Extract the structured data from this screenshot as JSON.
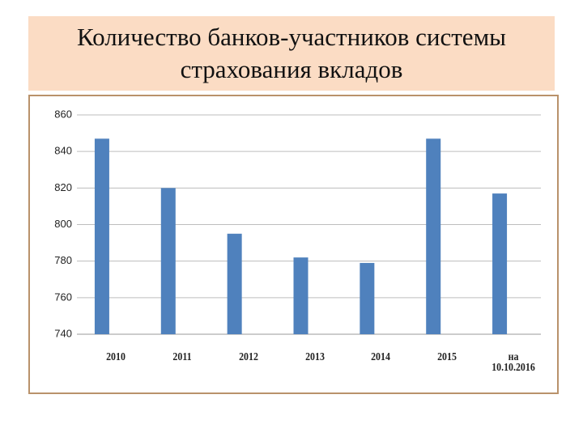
{
  "chart_data": {
    "type": "bar",
    "title": "Количество банков-участников системы страхования вкладов",
    "categories": [
      "2010",
      "2011",
      "2012",
      "2013",
      "2014",
      "2015",
      "на 10.10.2016"
    ],
    "values": [
      847,
      820,
      795,
      782,
      779,
      847,
      817
    ],
    "color": "#4f81bd",
    "ylim": [
      740,
      860
    ],
    "yticks": [
      740,
      760,
      780,
      800,
      820,
      840,
      860
    ],
    "grid": true
  }
}
